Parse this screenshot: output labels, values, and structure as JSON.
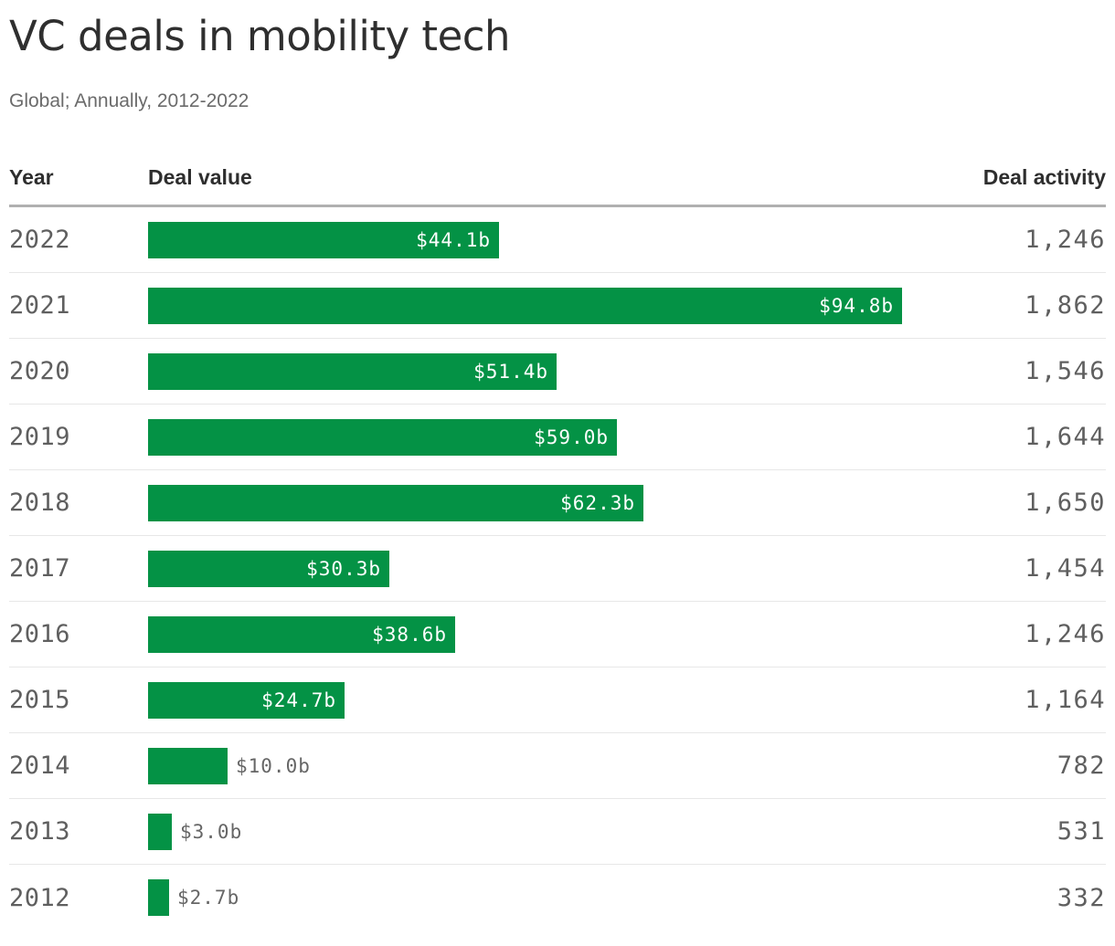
{
  "chart_data": {
    "type": "bar",
    "orientation": "horizontal",
    "title": "VC deals in mobility tech",
    "subtitle": "Global; Annually, 2012-2022",
    "columns": [
      "Year",
      "Deal value",
      "Deal activity"
    ],
    "value_unit": "USD billions",
    "max_value": 94.8,
    "legend": false,
    "grid": false,
    "colors": {
      "bar": "#049245",
      "bar_label_inside": "#ffffff",
      "bar_label_outside": "#666666",
      "title_text": "#2f2f2f",
      "subtitle_text": "#6b6b6b",
      "axis_text": "#5f5f5f",
      "header_rule": "#b0b0b0",
      "row_rule": "#e7e7e7"
    },
    "categories": [
      "2022",
      "2021",
      "2020",
      "2019",
      "2018",
      "2017",
      "2016",
      "2015",
      "2014",
      "2013",
      "2012"
    ],
    "series": [
      {
        "name": "Deal value",
        "values": [
          44.1,
          94.8,
          51.4,
          59.0,
          62.3,
          30.3,
          38.6,
          24.7,
          10.0,
          3.0,
          2.7
        ]
      },
      {
        "name": "Deal activity",
        "values": [
          1246,
          1862,
          1546,
          1644,
          1650,
          1454,
          1246,
          1164,
          782,
          531,
          332
        ]
      }
    ],
    "rows": [
      {
        "year": "2022",
        "deal_value_billions": 44.1,
        "deal_value_label": "$44.1b",
        "deal_activity": 1246,
        "deal_activity_label": "1,246"
      },
      {
        "year": "2021",
        "deal_value_billions": 94.8,
        "deal_value_label": "$94.8b",
        "deal_activity": 1862,
        "deal_activity_label": "1,862"
      },
      {
        "year": "2020",
        "deal_value_billions": 51.4,
        "deal_value_label": "$51.4b",
        "deal_activity": 1546,
        "deal_activity_label": "1,546"
      },
      {
        "year": "2019",
        "deal_value_billions": 59.0,
        "deal_value_label": "$59.0b",
        "deal_activity": 1644,
        "deal_activity_label": "1,644"
      },
      {
        "year": "2018",
        "deal_value_billions": 62.3,
        "deal_value_label": "$62.3b",
        "deal_activity": 1650,
        "deal_activity_label": "1,650"
      },
      {
        "year": "2017",
        "deal_value_billions": 30.3,
        "deal_value_label": "$30.3b",
        "deal_activity": 1454,
        "deal_activity_label": "1,454"
      },
      {
        "year": "2016",
        "deal_value_billions": 38.6,
        "deal_value_label": "$38.6b",
        "deal_activity": 1246,
        "deal_activity_label": "1,246"
      },
      {
        "year": "2015",
        "deal_value_billions": 24.7,
        "deal_value_label": "$24.7b",
        "deal_activity": 1164,
        "deal_activity_label": "1,164"
      },
      {
        "year": "2014",
        "deal_value_billions": 10.0,
        "deal_value_label": "$10.0b",
        "deal_activity": 782,
        "deal_activity_label": "782"
      },
      {
        "year": "2013",
        "deal_value_billions": 3.0,
        "deal_value_label": "$3.0b",
        "deal_activity": 531,
        "deal_activity_label": "531"
      },
      {
        "year": "2012",
        "deal_value_billions": 2.7,
        "deal_value_label": "$2.7b",
        "deal_activity": 332,
        "deal_activity_label": "332"
      }
    ]
  }
}
